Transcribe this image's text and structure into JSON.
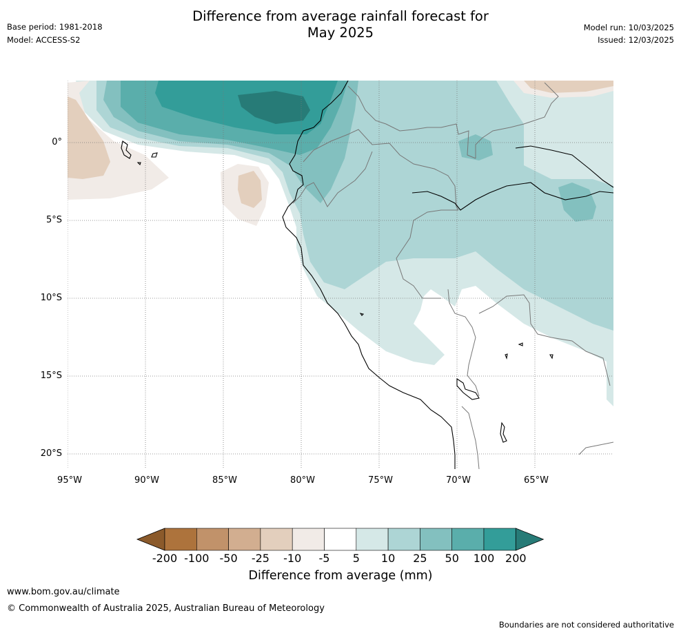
{
  "header": {
    "title_line1": "Difference from average rainfall forecast for",
    "title_line2": "May 2025",
    "base_period": "Base period: 1981-2018",
    "model": "Model: ACCESS-S2",
    "model_run": "Model run: 10/03/2025",
    "issued": "Issued: 12/03/2025"
  },
  "map": {
    "lat_labels": [
      "0°",
      "5°S",
      "10°S",
      "15°S",
      "20°S"
    ],
    "lon_labels": [
      "95°W",
      "90°W",
      "85°W",
      "80°W",
      "75°W",
      "70°W",
      "65°W"
    ]
  },
  "colorbar": {
    "title": "Difference from average (mm)",
    "ticks": [
      "-200",
      "-100",
      "-50",
      "-25",
      "-10",
      "-5",
      "5",
      "10",
      "25",
      "50",
      "100",
      "200"
    ],
    "colors": [
      "#8b5a2b",
      "#ad733c",
      "#c1926a",
      "#d2ae90",
      "#e3cfbd",
      "#f1ebe7",
      "#ffffff",
      "#d5e8e7",
      "#add5d5",
      "#83c0bf",
      "#5aaeab",
      "#339d99",
      "#277b77"
    ]
  },
  "footer": {
    "website": "www.bom.gov.au/climate",
    "copyright": "© Commonwealth of Australia 2025, Australian Bureau of Meteorology",
    "disclaimer": "Boundaries are not considered authoritative"
  }
}
